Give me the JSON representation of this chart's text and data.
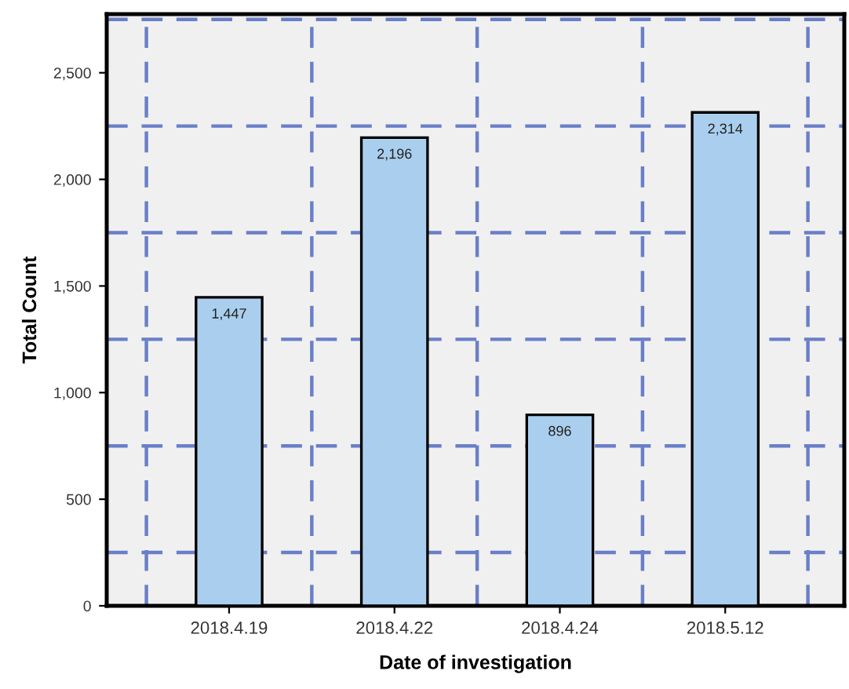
{
  "chart_data": {
    "type": "bar",
    "xlabel": "Date of investigation",
    "ylabel": "Total Count",
    "categories": [
      "2018.4.19",
      "2018.4.22",
      "2018.4.24",
      "2018.5.12"
    ],
    "values": [
      1447,
      2196,
      896,
      2314
    ],
    "value_labels": [
      "1,447",
      "2,196",
      "896",
      "2,314"
    ],
    "color": "#aacfee",
    "ylim": [
      0,
      2775
    ],
    "yticks": [
      0,
      {
        "value": 250,
        "label": null
      },
      500,
      {
        "value": 750,
        "label": null
      },
      {
        "value": 1000,
        "label": "1,000"
      },
      {
        "value": 1250,
        "label": null
      },
      {
        "value": 1500,
        "label": "1,500"
      },
      {
        "value": 1750,
        "label": null
      },
      {
        "value": 2000,
        "label": "2,000"
      },
      {
        "value": 2250,
        "label": null
      },
      {
        "value": 2500,
        "label": "2,500"
      },
      {
        "value": 2750,
        "label": null
      }
    ],
    "grid": true
  }
}
